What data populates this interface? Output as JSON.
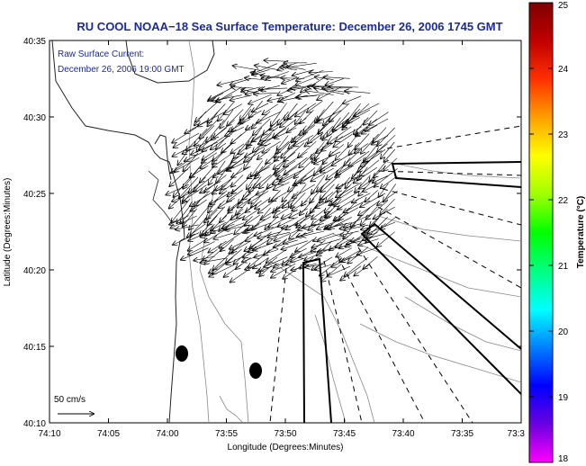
{
  "title": "RU COOL  NOAA−18  Sea Surface Temperature:  December 26, 2006 1745 GMT",
  "annotation": {
    "line1": "Raw Surface Current:",
    "line2": "December 26, 2006 19:00 GMT"
  },
  "scale_label": "50 cm/s",
  "x_axis": {
    "label": "Longitude (Degrees:Minutes)",
    "ticks": [
      "74:10",
      "74:05",
      "74:00",
      "73:55",
      "73:50",
      "73:45",
      "73:40",
      "73:35",
      "73:3"
    ]
  },
  "y_axis": {
    "label": "Latitude (Degrees:Minutes)",
    "ticks": [
      "40:35",
      "40:30",
      "40:25",
      "40:20",
      "40:15",
      "40:10"
    ]
  },
  "colorbar": {
    "label": "Temperature (°C)",
    "ticks": [
      "25",
      "24",
      "23",
      "22",
      "21",
      "20",
      "19",
      "18"
    ],
    "stops": [
      "#ff00ff",
      "#6a00e0",
      "#0000ff",
      "#0080ff",
      "#00ffff",
      "#00ff80",
      "#00ff00",
      "#a0ff00",
      "#ffff00",
      "#ffa000",
      "#ff3000",
      "#c00000",
      "#800000"
    ]
  },
  "colors": {
    "title_text": "#1a2a9c",
    "vectors": "#000000",
    "contours": "#888888"
  }
}
